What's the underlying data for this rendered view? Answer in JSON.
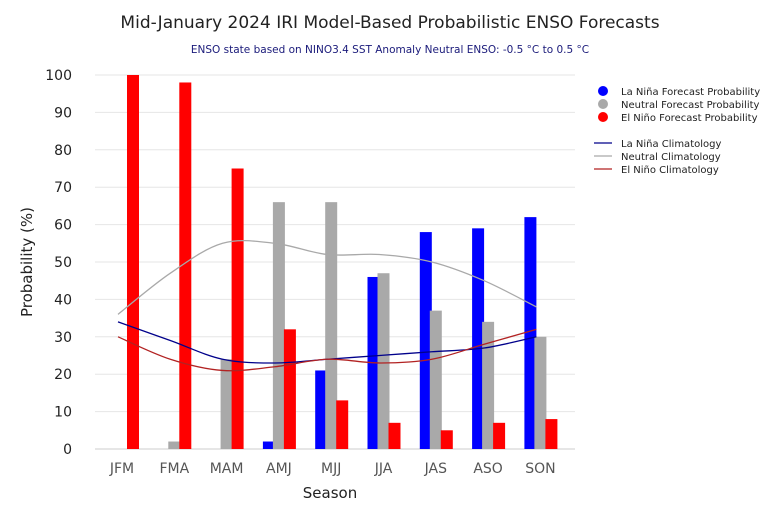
{
  "chart_data": {
    "type": "bar",
    "title": "Mid-January 2024 IRI Model-Based Probabilistic ENSO Forecasts",
    "subtitle": "ENSO state based on NINO3.4 SST Anomaly Neutral ENSO: -0.5 °C to 0.5 °C",
    "xlabel": "Season",
    "ylabel": "Probability (%)",
    "ylim": [
      0,
      100
    ],
    "yticks": [
      0,
      10,
      20,
      30,
      40,
      50,
      60,
      70,
      80,
      90,
      100
    ],
    "grid": true,
    "legend_position": "top-right",
    "categories": [
      "JFM",
      "FMA",
      "MAM",
      "AMJ",
      "MJJ",
      "JJA",
      "JAS",
      "ASO",
      "SON"
    ],
    "series": [
      {
        "name": "La Niña Forecast Probability",
        "kind": "bar",
        "color": "#0000ff",
        "values": [
          0,
          0,
          0,
          2,
          21,
          46,
          58,
          59,
          62
        ]
      },
      {
        "name": "Neutral Forecast Probability",
        "kind": "bar",
        "color": "#a9a9a9",
        "values": [
          0,
          2,
          24,
          66,
          66,
          47,
          37,
          34,
          30
        ]
      },
      {
        "name": "El Niño Forecast Probability",
        "kind": "bar",
        "color": "#ff0000",
        "values": [
          100,
          98,
          75,
          32,
          13,
          7,
          5,
          7,
          8
        ]
      },
      {
        "name": "La Niña Climatology",
        "kind": "line",
        "color": "#00008b",
        "values": [
          34,
          29,
          24,
          23,
          24,
          25,
          26,
          27,
          30
        ]
      },
      {
        "name": "Neutral Climatology",
        "kind": "line",
        "color": "#a9a9a9",
        "values": [
          36,
          47,
          55,
          55,
          52,
          52,
          50,
          45,
          38
        ]
      },
      {
        "name": "El Niño Climatology",
        "kind": "line",
        "color": "#b22222",
        "values": [
          30,
          24,
          21,
          22,
          24,
          23,
          24,
          28,
          32
        ]
      }
    ]
  }
}
